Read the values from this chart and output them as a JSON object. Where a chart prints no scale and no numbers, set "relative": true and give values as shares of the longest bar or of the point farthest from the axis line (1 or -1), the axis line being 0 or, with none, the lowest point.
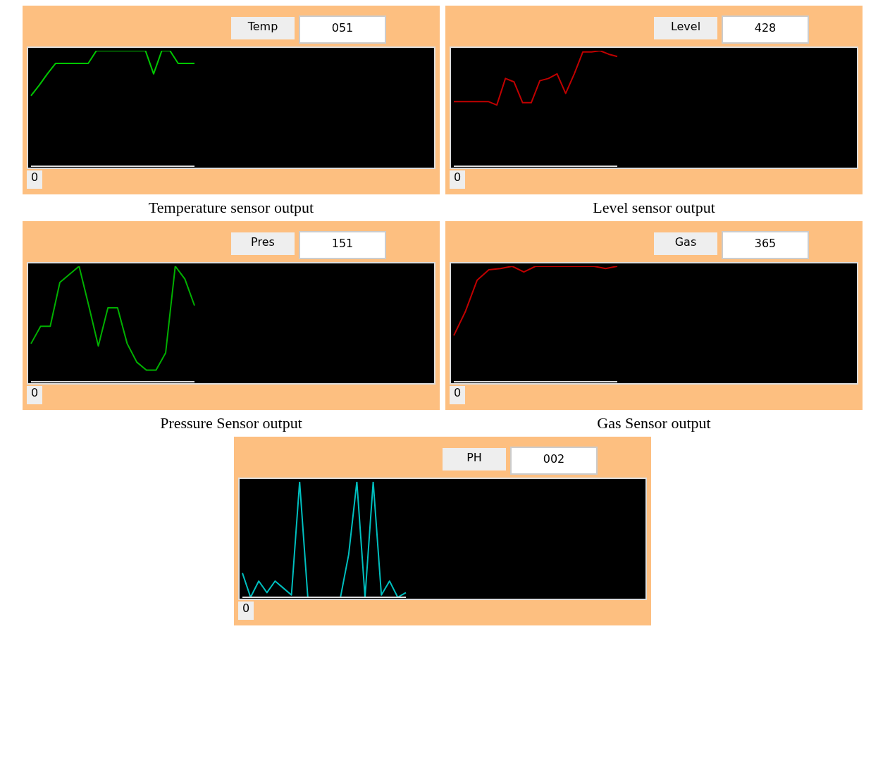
{
  "chart_data": [
    {
      "type": "line",
      "title": "Temperature sensor output",
      "relative": true,
      "annotations": [
        "Temp",
        "051",
        "0"
      ],
      "categories": [
        null,
        null,
        null,
        null,
        null,
        null,
        null,
        null,
        null,
        null,
        null,
        null,
        null,
        null,
        null,
        null,
        null,
        null,
        null,
        null,
        null
      ],
      "series": [
        {
          "color": "#00c800",
          "values": [
            0.61,
            0.7,
            0.8,
            0.89,
            0.89,
            0.89,
            0.89,
            0.89,
            1,
            1,
            1,
            1,
            1,
            1,
            1,
            0.8,
            1,
            1,
            0.89,
            0.89,
            0.89
          ]
        }
      ]
    },
    {
      "type": "line",
      "title": "Level sensor output",
      "relative": true,
      "annotations": [
        "Level",
        "428",
        "0"
      ],
      "categories": [
        null,
        null,
        null,
        null,
        null,
        null,
        null,
        null,
        null,
        null,
        null,
        null,
        null,
        null,
        null,
        null,
        null,
        null,
        null,
        null
      ],
      "series": [
        {
          "color": "#c00000",
          "values": [
            0.56,
            0.56,
            0.56,
            0.56,
            0.56,
            0.53,
            0.76,
            0.73,
            0.55,
            0.55,
            0.74,
            0.76,
            0.8,
            0.63,
            0.8,
            0.99,
            0.99,
            1,
            0.97,
            0.95
          ]
        }
      ]
    },
    {
      "type": "line",
      "title": "Pressure Sensor output",
      "relative": true,
      "annotations": [
        "Pres",
        "151",
        "0"
      ],
      "categories": [
        null,
        null,
        null,
        null,
        null,
        null,
        null,
        null,
        null,
        null,
        null,
        null,
        null,
        null,
        null,
        null,
        null,
        null
      ],
      "series": [
        {
          "color": "#00b000",
          "values": [
            0.33,
            0.48,
            0.48,
            0.86,
            0.93,
            1,
            0.66,
            0.31,
            0.64,
            0.64,
            0.33,
            0.17,
            0.1,
            0.1,
            0.25,
            1,
            0.89,
            0.66
          ]
        }
      ]
    },
    {
      "type": "line",
      "title": "Gas Sensor output",
      "relative": true,
      "annotations": [
        "Gas",
        "365",
        "0"
      ],
      "categories": [
        null,
        null,
        null,
        null,
        null,
        null,
        null,
        null,
        null,
        null,
        null,
        null,
        null,
        null,
        null
      ],
      "series": [
        {
          "color": "#c00000",
          "values": [
            0.4,
            0.61,
            0.88,
            0.97,
            0.98,
            1,
            0.95,
            1,
            1,
            1,
            1,
            1,
            1,
            0.98,
            1
          ]
        }
      ]
    },
    {
      "type": "line",
      "relative": true,
      "annotations": [
        "PH",
        "002",
        "0"
      ],
      "categories": [
        null,
        null,
        null,
        null,
        null,
        null,
        null,
        null,
        null,
        null,
        null,
        null,
        null,
        null,
        null,
        null,
        null,
        null,
        null,
        null,
        null
      ],
      "series": [
        {
          "color": "#00bfbf",
          "values": [
            0.21,
            0,
            0.14,
            0.04,
            0.14,
            0.08,
            0.02,
            1,
            0,
            0,
            0,
            0,
            0,
            0.37,
            1,
            0,
            1,
            0.02,
            0.14,
            0,
            0.04
          ]
        }
      ]
    }
  ]
}
